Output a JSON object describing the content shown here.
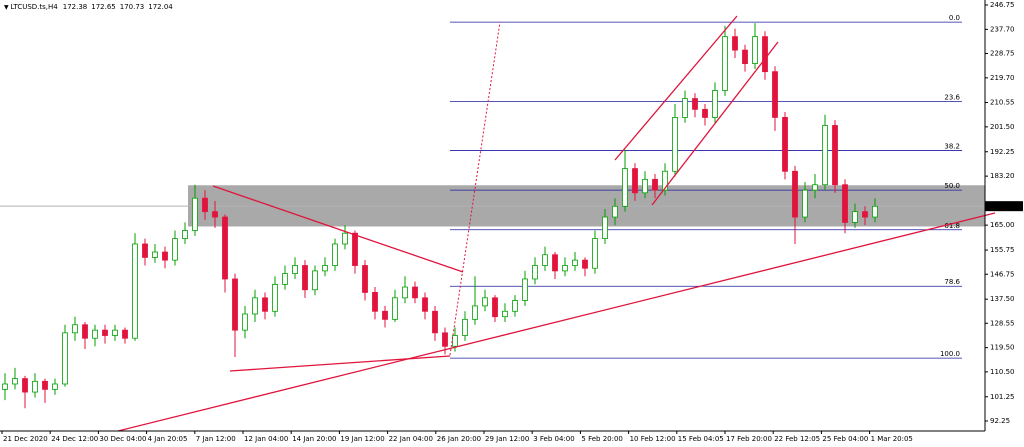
{
  "chart_data": {
    "type": "candlestick",
    "title": "LTCUSD.ts,H4",
    "ohlc": [
      172.38,
      172.65,
      170.73,
      172.04
    ],
    "up_color": "#00a000",
    "down_color": "#e0143c",
    "ylim": [
      88.54,
      248.61
    ],
    "yticks": [
      {
        "value": 246.75,
        "label": "246.75"
      },
      {
        "value": 237.7,
        "label": "237.70"
      },
      {
        "value": 228.75,
        "label": "228.75"
      },
      {
        "value": 219.7,
        "label": "219.70"
      },
      {
        "value": 210.55,
        "label": "210.55"
      },
      {
        "value": 201.5,
        "label": "201.50"
      },
      {
        "value": 192.25,
        "label": "192.25"
      },
      {
        "value": 183.2,
        "label": "183.20"
      },
      {
        "value": 165,
        "label": "165.00"
      },
      {
        "value": 155.75,
        "label": "155.75"
      },
      {
        "value": 146.75,
        "label": "146.75"
      },
      {
        "value": 137.5,
        "label": "137.50"
      },
      {
        "value": 128.55,
        "label": "128.55"
      },
      {
        "value": 119.5,
        "label": "119.50"
      },
      {
        "value": 110.5,
        "label": "110.50"
      },
      {
        "value": 101.25,
        "label": "101.25"
      },
      {
        "value": 92.25,
        "label": "92.25"
      }
    ],
    "x_labels": [
      "21 Dec 2020",
      "24 Dec 12:00",
      "30 Dec 04:00",
      "4 Jan 20:05",
      "7 Jan 12:00",
      "12 Jan 04:00",
      "14 Jan 20:00",
      "19 Jan 12:00",
      "22 Jan 04:00",
      "26 Jan 20:00",
      "29 Jan 12:00",
      "3 Feb 04:00",
      "5 Feb 20:00",
      "10 Feb 12:00",
      "15 Feb 04:05",
      "17 Feb 20:00",
      "22 Feb 12:05",
      "25 Feb 04:00",
      "1 Mar 20:05"
    ],
    "current_price": {
      "value": 172.04,
      "label": "172.04"
    },
    "zone": [
      164.5,
      179.8
    ],
    "fib_levels": [
      {
        "value": 240.4,
        "label": "0.0"
      },
      {
        "value": 210.95,
        "label": "23.6"
      },
      {
        "value": 192.73,
        "label": "38.2"
      },
      {
        "value": 178,
        "label": "50.0"
      },
      {
        "value": 163.27,
        "label": "61.8"
      },
      {
        "value": 142.31,
        "label": "78.6"
      },
      {
        "value": 115.6,
        "label": "100.0"
      }
    ],
    "candles": [
      [
        104,
        110,
        100,
        106
      ],
      [
        106,
        112,
        104,
        108
      ],
      [
        108,
        109,
        97,
        103
      ],
      [
        103,
        110,
        101,
        107
      ],
      [
        107,
        108,
        99,
        104
      ],
      [
        104,
        108,
        102,
        106
      ],
      [
        106,
        128,
        105,
        125
      ],
      [
        125,
        131,
        122,
        128
      ],
      [
        128,
        129,
        119,
        123
      ],
      [
        123,
        128,
        120,
        126
      ],
      [
        126,
        128,
        121,
        124
      ],
      [
        124,
        128,
        122,
        126
      ],
      [
        126,
        127,
        121,
        123
      ],
      [
        123,
        162,
        122,
        158
      ],
      [
        158,
        160,
        150,
        153
      ],
      [
        153,
        158,
        151,
        155
      ],
      [
        155,
        157,
        149,
        152
      ],
      [
        152,
        163,
        150,
        160
      ],
      [
        160,
        166,
        158,
        163
      ],
      [
        163,
        180,
        161,
        175
      ],
      [
        175,
        178,
        167,
        170
      ],
      [
        170,
        174,
        164,
        168
      ],
      [
        168,
        169,
        140,
        145
      ],
      [
        145,
        147,
        116,
        126
      ],
      [
        126,
        135,
        123,
        132
      ],
      [
        132,
        141,
        129,
        138
      ],
      [
        138,
        140,
        130,
        133
      ],
      [
        133,
        146,
        131,
        143
      ],
      [
        143,
        150,
        141,
        147
      ],
      [
        147,
        153,
        145,
        150
      ],
      [
        150,
        152,
        138,
        141
      ],
      [
        141,
        150,
        139,
        148
      ],
      [
        148,
        153,
        146,
        150
      ],
      [
        150,
        160,
        148,
        158
      ],
      [
        158,
        165,
        156,
        162
      ],
      [
        162,
        163,
        147,
        150
      ],
      [
        150,
        152,
        137,
        140
      ],
      [
        140,
        142,
        130,
        133
      ],
      [
        133,
        135,
        127,
        130
      ],
      [
        130,
        141,
        129,
        138
      ],
      [
        138,
        146,
        136,
        142
      ],
      [
        142,
        144,
        136,
        138
      ],
      [
        138,
        140,
        130,
        133
      ],
      [
        133,
        135,
        122,
        125
      ],
      [
        125,
        127,
        117,
        120
      ],
      [
        120,
        127,
        118,
        124
      ],
      [
        124,
        133,
        122,
        130
      ],
      [
        130,
        146,
        128,
        135
      ],
      [
        135,
        141,
        133,
        138
      ],
      [
        138,
        139,
        129,
        131
      ],
      [
        131,
        136,
        129,
        133
      ],
      [
        133,
        139,
        131,
        137
      ],
      [
        137,
        148,
        135,
        145
      ],
      [
        145,
        153,
        143,
        150
      ],
      [
        150,
        157,
        148,
        154
      ],
      [
        154,
        155,
        145,
        148
      ],
      [
        148,
        153,
        146,
        150
      ],
      [
        150,
        155,
        148,
        152
      ],
      [
        152,
        153,
        146,
        149
      ],
      [
        149,
        163,
        147,
        160
      ],
      [
        160,
        171,
        158,
        168
      ],
      [
        168,
        175,
        165,
        172
      ],
      [
        172,
        193,
        170,
        186
      ],
      [
        186,
        188,
        174,
        177
      ],
      [
        177,
        185,
        175,
        182
      ],
      [
        182,
        184,
        175,
        178
      ],
      [
        178,
        188,
        176,
        185
      ],
      [
        185,
        210,
        183,
        205
      ],
      [
        205,
        215,
        203,
        212
      ],
      [
        212,
        214,
        205,
        208
      ],
      [
        208,
        210,
        202,
        205
      ],
      [
        205,
        218,
        203,
        215
      ],
      [
        215,
        239,
        213,
        235
      ],
      [
        235,
        238,
        227,
        230
      ],
      [
        230,
        232,
        222,
        225
      ],
      [
        225,
        240,
        223,
        235
      ],
      [
        235,
        237,
        219,
        222
      ],
      [
        222,
        224,
        200,
        205
      ],
      [
        205,
        207,
        182,
        185
      ],
      [
        185,
        187,
        158,
        168
      ],
      [
        168,
        181,
        166,
        178
      ],
      [
        178,
        184,
        175,
        180
      ],
      [
        180,
        206,
        178,
        202
      ],
      [
        202,
        204,
        177,
        180
      ],
      [
        180,
        182,
        162,
        166
      ],
      [
        166,
        173,
        164,
        170
      ],
      [
        170,
        172,
        165,
        168
      ],
      [
        168,
        175,
        166,
        172
      ]
    ]
  }
}
